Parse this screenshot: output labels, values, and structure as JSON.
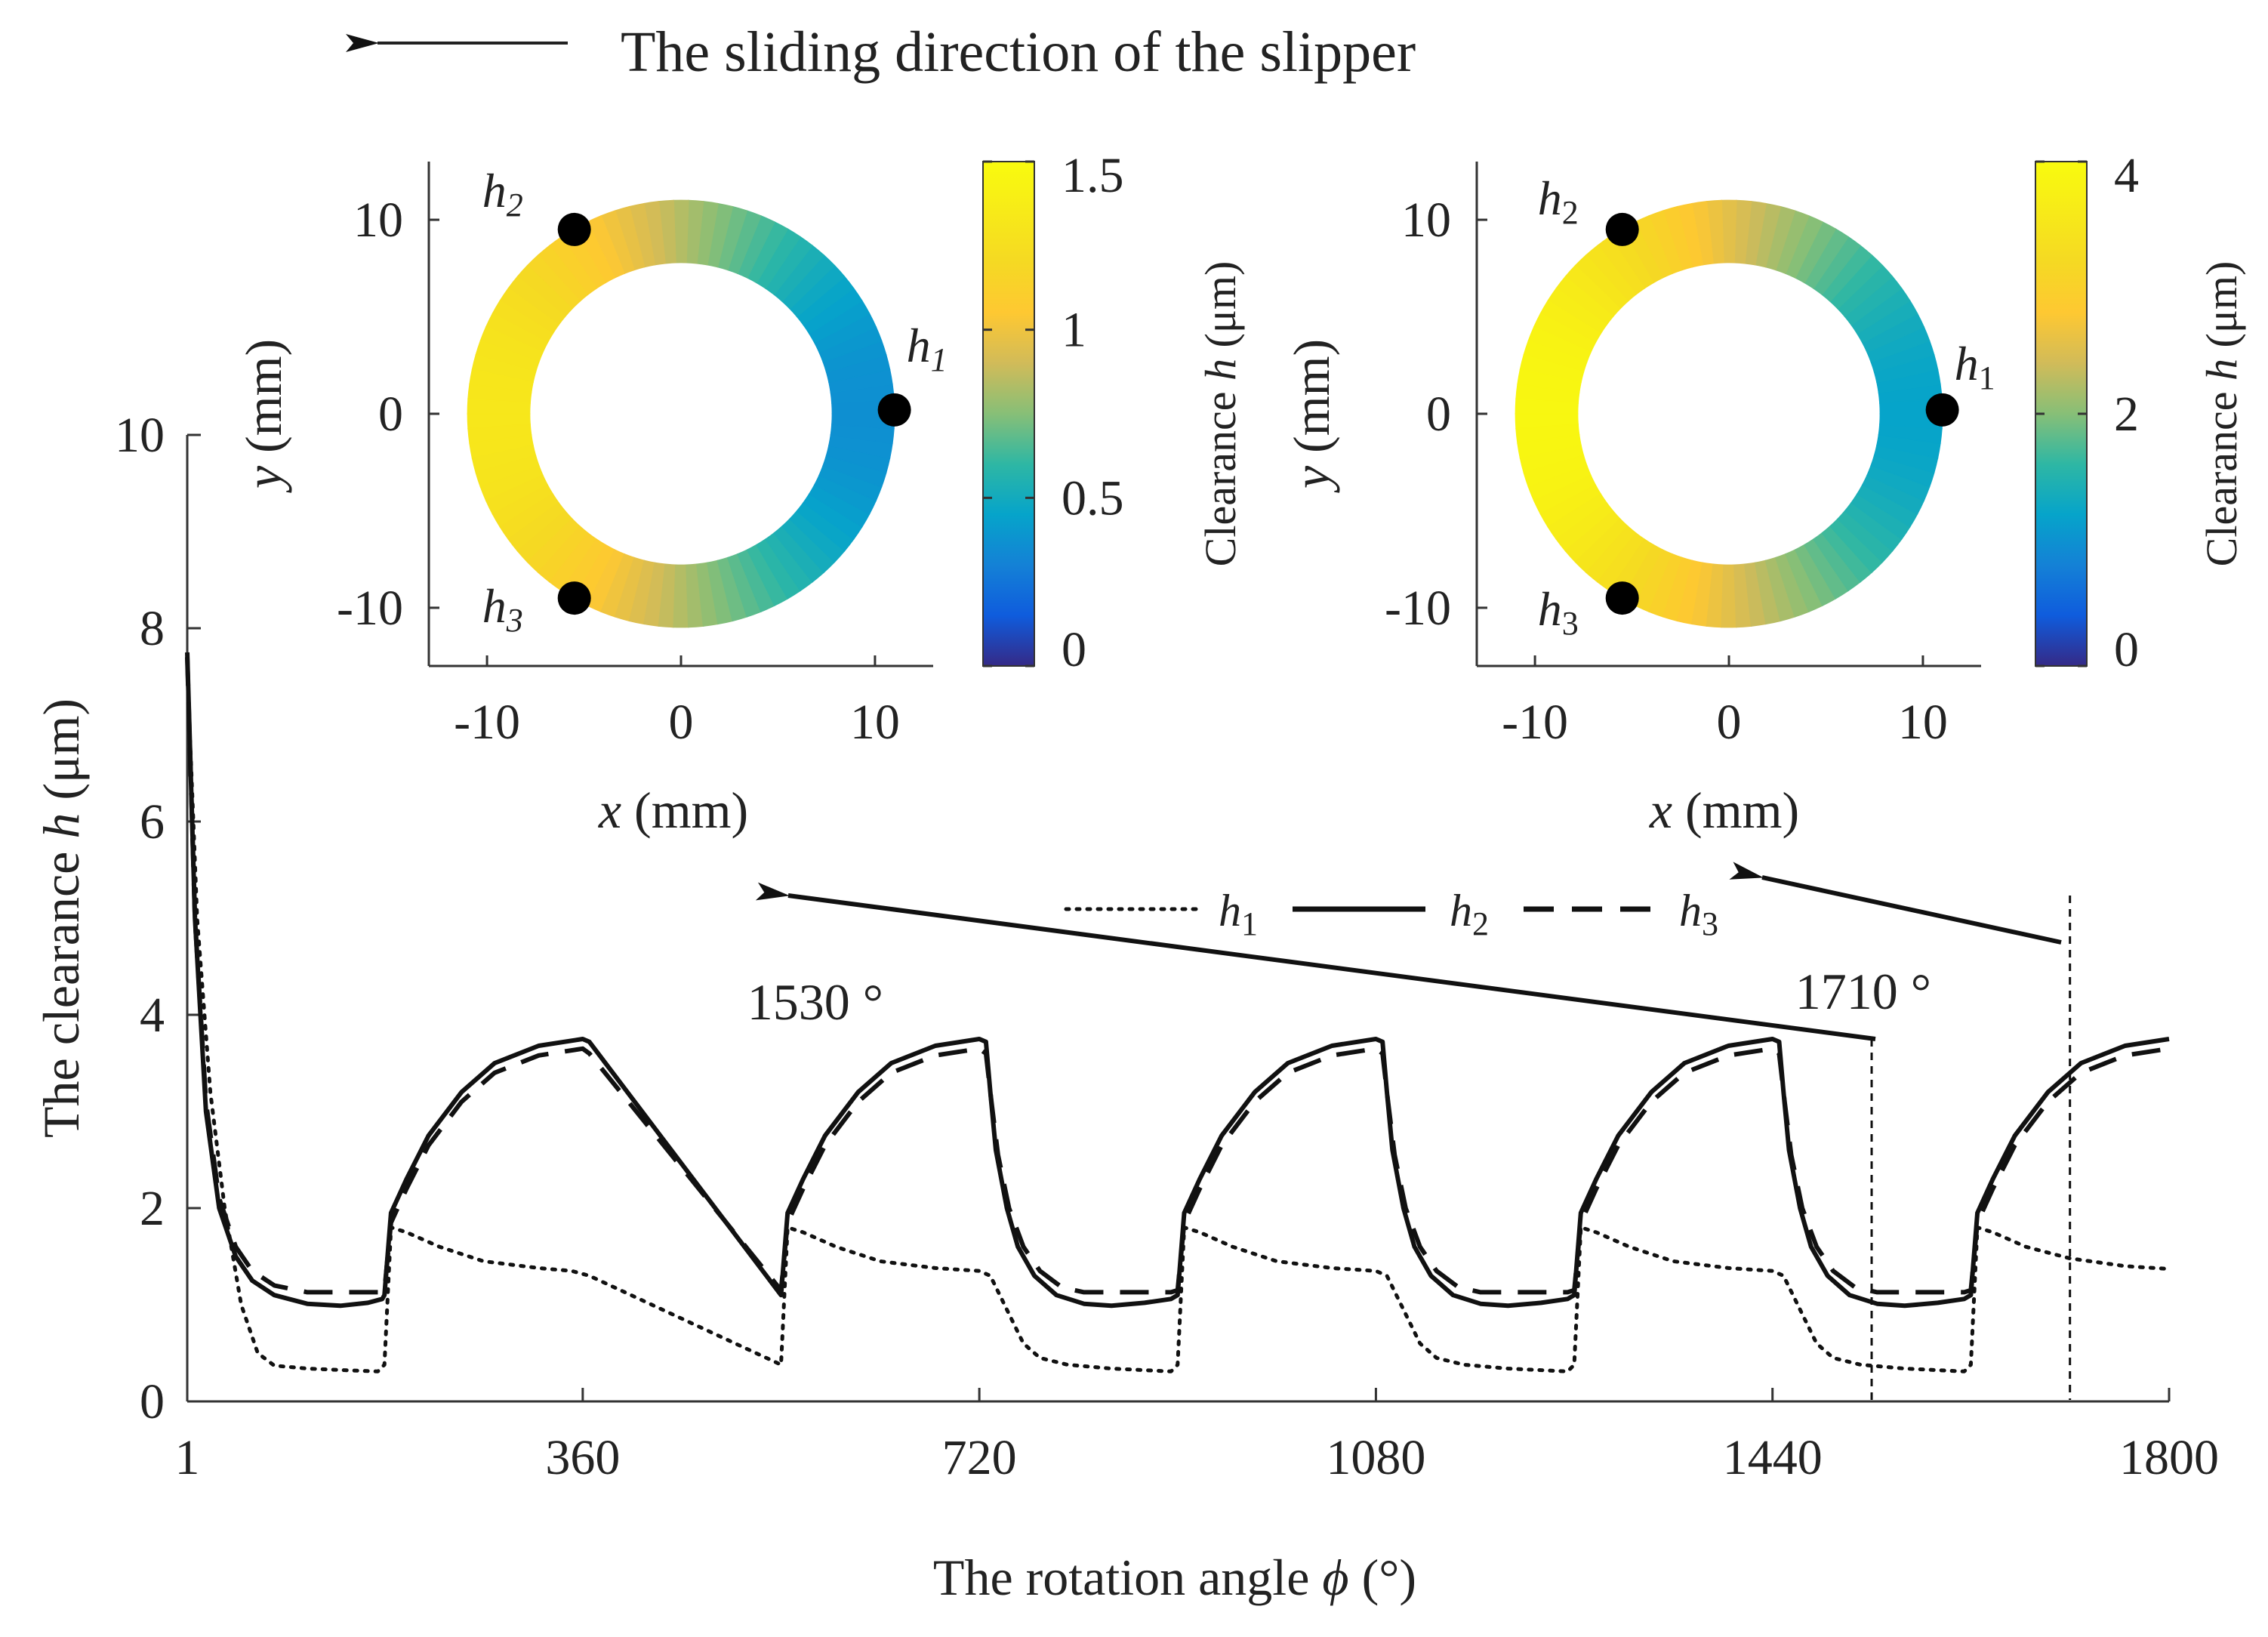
{
  "header": {
    "direction_text": "The sliding direction of the slipper"
  },
  "chart_data": [
    {
      "type": "line",
      "xlabel_prefix": "The rotation angle ",
      "xlabel_symbol": "ϕ",
      "xlabel_suffix": " (°)",
      "ylabel_prefix": "The clearance ",
      "ylabel_symbol": "h",
      "ylabel_suffix": " (μm)",
      "xlim": [
        1,
        1800
      ],
      "ylim": [
        0,
        10
      ],
      "xticks": [
        1,
        360,
        720,
        1080,
        1440,
        1800
      ],
      "xtick_labels": [
        "1",
        "360",
        "720",
        "1080",
        "1440",
        "1800"
      ],
      "yticks": [
        0,
        2,
        4,
        6,
        8,
        10
      ],
      "ytick_labels": [
        "0",
        "2",
        "4",
        "6",
        "8",
        "10"
      ],
      "period_deg": 360,
      "series": [
        {
          "name": "h",
          "subscript": "1",
          "style": "dotted",
          "first_cycle": [
            [
              1,
              7.6
            ],
            [
              10,
              5.0
            ],
            [
              22,
              3.2
            ],
            [
              35,
              2.0
            ],
            [
              50,
              1.0
            ],
            [
              65,
              0.5
            ],
            [
              80,
              0.37
            ],
            [
              110,
              0.34
            ],
            [
              150,
              0.32
            ],
            [
              174,
              0.31
            ],
            [
              180,
              0.38
            ],
            [
              186,
              1.8
            ],
            [
              200,
              1.75
            ],
            [
              230,
              1.6
            ],
            [
              270,
              1.45
            ],
            [
              320,
              1.38
            ],
            [
              350,
              1.35
            ],
            [
              366,
              1.3
            ]
          ],
          "cycle": [
            [
              0,
              0.38
            ],
            [
              6,
              1.8
            ],
            [
              20,
              1.75
            ],
            [
              50,
              1.6
            ],
            [
              90,
              1.45
            ],
            [
              140,
              1.38
            ],
            [
              180,
              1.35
            ],
            [
              190,
              1.3
            ],
            [
              205,
              0.95
            ],
            [
              220,
              0.6
            ],
            [
              235,
              0.45
            ],
            [
              260,
              0.38
            ],
            [
              300,
              0.34
            ],
            [
              354,
              0.31
            ]
          ],
          "last_cycle": [
            [
              0,
              0.38
            ],
            [
              6,
              1.8
            ],
            [
              20,
              1.75
            ],
            [
              50,
              1.6
            ],
            [
              90,
              1.48
            ],
            [
              140,
              1.4
            ],
            [
              180,
              1.37
            ],
            [
              215,
              1.35
            ]
          ]
        },
        {
          "name": "h",
          "subscript": "2",
          "style": "solid",
          "first_cycle": [
            [
              1,
              7.75
            ],
            [
              8,
              5.0
            ],
            [
              18,
              3.0
            ],
            [
              30,
              2.0
            ],
            [
              45,
              1.5
            ],
            [
              60,
              1.25
            ],
            [
              80,
              1.1
            ],
            [
              110,
              1.01
            ],
            [
              140,
              0.99
            ],
            [
              165,
              1.02
            ],
            [
              178,
              1.06
            ],
            [
              180,
              1.1
            ],
            [
              186,
              1.95
            ],
            [
              200,
              2.3
            ],
            [
              220,
              2.75
            ],
            [
              250,
              3.2
            ],
            [
              280,
              3.5
            ],
            [
              320,
              3.68
            ],
            [
              360,
              3.75
            ],
            [
              366,
              3.72
            ]
          ],
          "cycle": [
            [
              0,
              1.1
            ],
            [
              6,
              1.95
            ],
            [
              20,
              2.3
            ],
            [
              40,
              2.75
            ],
            [
              70,
              3.2
            ],
            [
              100,
              3.5
            ],
            [
              140,
              3.68
            ],
            [
              180,
              3.75
            ],
            [
              186,
              3.72
            ],
            [
              190,
              3.2
            ],
            [
              195,
              2.6
            ],
            [
              205,
              2.0
            ],
            [
              215,
              1.6
            ],
            [
              230,
              1.3
            ],
            [
              250,
              1.1
            ],
            [
              275,
              1.01
            ],
            [
              300,
              0.99
            ],
            [
              330,
              1.02
            ],
            [
              354,
              1.06
            ]
          ],
          "last_cycle": [
            [
              0,
              1.1
            ],
            [
              6,
              1.95
            ],
            [
              20,
              2.3
            ],
            [
              40,
              2.75
            ],
            [
              70,
              3.2
            ],
            [
              100,
              3.5
            ],
            [
              140,
              3.68
            ],
            [
              180,
              3.75
            ],
            [
              215,
              3.76
            ]
          ]
        },
        {
          "name": "h",
          "subscript": "3",
          "style": "dashed",
          "first_cycle": [
            [
              1,
              7.7
            ],
            [
              8,
              5.0
            ],
            [
              18,
              3.1
            ],
            [
              30,
              2.1
            ],
            [
              45,
              1.6
            ],
            [
              60,
              1.35
            ],
            [
              80,
              1.2
            ],
            [
              110,
              1.13
            ],
            [
              178,
              1.13
            ],
            [
              180,
              1.15
            ],
            [
              186,
              1.85
            ],
            [
              200,
              2.2
            ],
            [
              220,
              2.65
            ],
            [
              250,
              3.1
            ],
            [
              280,
              3.4
            ],
            [
              320,
              3.58
            ],
            [
              360,
              3.65
            ],
            [
              366,
              3.6
            ]
          ],
          "cycle": [
            [
              0,
              1.15
            ],
            [
              6,
              1.85
            ],
            [
              20,
              2.2
            ],
            [
              40,
              2.65
            ],
            [
              70,
              3.1
            ],
            [
              100,
              3.4
            ],
            [
              140,
              3.58
            ],
            [
              180,
              3.65
            ],
            [
              186,
              3.6
            ],
            [
              191,
              3.1
            ],
            [
              197,
              2.55
            ],
            [
              207,
              2.0
            ],
            [
              220,
              1.6
            ],
            [
              235,
              1.35
            ],
            [
              255,
              1.18
            ],
            [
              275,
              1.13
            ],
            [
              354,
              1.13
            ]
          ],
          "last_cycle": [
            [
              0,
              1.15
            ],
            [
              6,
              1.85
            ],
            [
              20,
              2.2
            ],
            [
              40,
              2.65
            ],
            [
              70,
              3.1
            ],
            [
              100,
              3.4
            ],
            [
              140,
              3.58
            ],
            [
              180,
              3.65
            ],
            [
              215,
              3.67
            ]
          ]
        }
      ],
      "annotations": [
        {
          "label": "1530 °",
          "x": 1530
        },
        {
          "label": "1710 °",
          "x": 1710
        }
      ]
    },
    {
      "type": "heatmap",
      "shape": "annulus",
      "xlabel_symbol": "x",
      "xlabel_suffix": " (mm)",
      "ylabel_symbol": "y",
      "ylabel_suffix": " (mm)",
      "xlim": [
        -13,
        13
      ],
      "ylim": [
        -13,
        13
      ],
      "xticks": [
        -10,
        0,
        10
      ],
      "xtick_labels": [
        "-10",
        "0",
        "10"
      ],
      "yticks": [
        -10,
        0,
        10
      ],
      "ytick_labels": [
        "-10",
        "0",
        "10"
      ],
      "inner_radius_mm": 7.8,
      "outer_radius_mm": 11.0,
      "colorbar_label_prefix": "Clearance ",
      "colorbar_label_symbol": "h",
      "colorbar_label_suffix": " (μm)",
      "clim": [
        0,
        1.5
      ],
      "colorbar_ticks": [
        0,
        0.5,
        1,
        1.5
      ],
      "colorbar_tick_labels": [
        "0",
        "0.5",
        "1",
        "1.5"
      ],
      "field": {
        "center": 0.84,
        "amplitude": 0.48,
        "min_angle_deg": 0
      },
      "points": [
        {
          "name": "h",
          "subscript": "1",
          "x": 11.0,
          "y": 0.2
        },
        {
          "name": "h",
          "subscript": "2",
          "x": -5.5,
          "y": 9.5
        },
        {
          "name": "h",
          "subscript": "3",
          "x": -5.5,
          "y": -9.5
        }
      ]
    },
    {
      "type": "heatmap",
      "shape": "annulus",
      "xlabel_symbol": "x",
      "xlabel_suffix": " (mm)",
      "ylabel_symbol": "y",
      "ylabel_suffix": " (mm)",
      "xlim": [
        -13,
        13
      ],
      "ylim": [
        -13,
        13
      ],
      "xticks": [
        -10,
        0,
        10
      ],
      "xtick_labels": [
        "-10",
        "0",
        "10"
      ],
      "yticks": [
        -10,
        0,
        10
      ],
      "ytick_labels": [
        "-10",
        "0",
        "10"
      ],
      "inner_radius_mm": 7.8,
      "outer_radius_mm": 11.0,
      "colorbar_label_prefix": "Clearance ",
      "colorbar_label_symbol": "h",
      "colorbar_label_suffix": " (μm)",
      "clim": [
        0,
        4
      ],
      "colorbar_ticks": [
        0,
        2,
        4
      ],
      "colorbar_tick_labels": [
        "0",
        "2",
        "4"
      ],
      "field": {
        "center": 2.55,
        "amplitude": 1.35,
        "min_angle_deg": 0
      },
      "points": [
        {
          "name": "h",
          "subscript": "1",
          "x": 11.0,
          "y": 0.2
        },
        {
          "name": "h",
          "subscript": "2",
          "x": -5.5,
          "y": 9.5
        },
        {
          "name": "h",
          "subscript": "3",
          "x": -5.5,
          "y": -9.5
        }
      ]
    }
  ]
}
